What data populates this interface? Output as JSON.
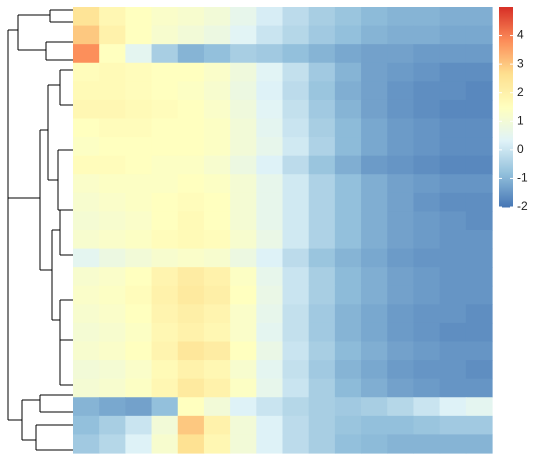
{
  "chart_data": {
    "type": "heatmap",
    "values": [
      [
        2.5,
        1.8,
        1.5,
        1.3,
        1.2,
        1.0,
        0.6,
        0.2,
        -0.2,
        -0.5,
        -0.7,
        -0.9,
        -1.0,
        -1.0,
        -1.1,
        -1.1
      ],
      [
        3.0,
        2.0,
        1.5,
        1.2,
        1.0,
        0.8,
        0.4,
        0.0,
        -0.3,
        -0.6,
        -0.8,
        -1.0,
        -1.1,
        -1.1,
        -1.2,
        -1.2
      ],
      [
        3.8,
        1.5,
        0.5,
        -0.5,
        -1.0,
        -0.8,
        -0.5,
        -0.6,
        -0.8,
        -1.0,
        -1.2,
        -1.3,
        -1.3,
        -1.4,
        -1.4,
        -1.4
      ],
      [
        1.6,
        1.7,
        1.6,
        1.5,
        1.5,
        1.3,
        0.9,
        0.4,
        -0.1,
        -0.6,
        -1.0,
        -1.3,
        -1.4,
        -1.5,
        -1.6,
        -1.6
      ],
      [
        1.7,
        1.7,
        1.6,
        1.5,
        1.4,
        1.2,
        0.8,
        0.3,
        -0.2,
        -0.7,
        -1.1,
        -1.3,
        -1.5,
        -1.6,
        -1.6,
        -1.7
      ],
      [
        1.8,
        1.8,
        1.7,
        1.6,
        1.5,
        1.3,
        0.9,
        0.4,
        -0.1,
        -0.6,
        -1.0,
        -1.3,
        -1.5,
        -1.6,
        -1.7,
        -1.7
      ],
      [
        1.5,
        1.6,
        1.6,
        1.5,
        1.5,
        1.4,
        1.0,
        0.5,
        0.0,
        -0.5,
        -0.9,
        -1.2,
        -1.4,
        -1.5,
        -1.6,
        -1.6
      ],
      [
        1.4,
        1.5,
        1.5,
        1.5,
        1.5,
        1.4,
        1.0,
        0.6,
        0.1,
        -0.4,
        -0.9,
        -1.2,
        -1.4,
        -1.5,
        -1.6,
        -1.6
      ],
      [
        1.6,
        1.6,
        1.5,
        1.4,
        1.4,
        1.2,
        0.8,
        0.3,
        -0.2,
        -0.7,
        -1.1,
        -1.4,
        -1.5,
        -1.6,
        -1.7,
        -1.7
      ],
      [
        1.3,
        1.4,
        1.4,
        1.4,
        1.5,
        1.4,
        1.1,
        0.6,
        0.1,
        -0.4,
        -0.8,
        -1.1,
        -1.3,
        -1.4,
        -1.5,
        -1.5
      ],
      [
        1.2,
        1.3,
        1.4,
        1.5,
        1.6,
        1.5,
        1.1,
        0.6,
        0.1,
        -0.4,
        -0.8,
        -1.1,
        -1.3,
        -1.5,
        -1.6,
        -1.6
      ],
      [
        1.1,
        1.2,
        1.3,
        1.5,
        1.7,
        1.5,
        1.1,
        0.6,
        0.1,
        -0.4,
        -0.8,
        -1.1,
        -1.3,
        -1.4,
        -1.5,
        -1.6
      ],
      [
        1.2,
        1.3,
        1.4,
        1.6,
        1.7,
        1.6,
        1.2,
        0.7,
        0.1,
        -0.4,
        -0.8,
        -1.1,
        -1.3,
        -1.4,
        -1.5,
        -1.5
      ],
      [
        0.5,
        0.8,
        1.0,
        1.2,
        1.3,
        1.2,
        0.8,
        0.3,
        -0.2,
        -0.7,
        -1.0,
        -1.2,
        -1.4,
        -1.5,
        -1.5,
        -1.5
      ],
      [
        1.2,
        1.3,
        1.5,
        1.9,
        2.2,
        2.0,
        1.4,
        0.6,
        0.0,
        -0.5,
        -0.9,
        -1.1,
        -1.3,
        -1.4,
        -1.5,
        -1.5
      ],
      [
        1.3,
        1.4,
        1.6,
        2.0,
        2.3,
        2.1,
        1.5,
        0.7,
        0.0,
        -0.5,
        -0.9,
        -1.1,
        -1.3,
        -1.4,
        -1.5,
        -1.5
      ],
      [
        1.2,
        1.3,
        1.5,
        1.9,
        2.1,
        1.9,
        1.3,
        0.6,
        -0.1,
        -0.6,
        -1.0,
        -1.2,
        -1.4,
        -1.5,
        -1.5,
        -1.6
      ],
      [
        1.1,
        1.2,
        1.4,
        1.8,
        2.0,
        1.8,
        1.3,
        0.5,
        -0.1,
        -0.6,
        -1.0,
        -1.2,
        -1.4,
        -1.5,
        -1.6,
        -1.6
      ],
      [
        1.2,
        1.3,
        1.5,
        1.9,
        2.4,
        2.2,
        1.5,
        0.7,
        0.0,
        -0.5,
        -0.9,
        -1.1,
        -1.3,
        -1.4,
        -1.5,
        -1.5
      ],
      [
        1.0,
        1.1,
        1.3,
        1.7,
        2.0,
        1.8,
        1.2,
        0.5,
        -0.1,
        -0.6,
        -1.0,
        -1.2,
        -1.4,
        -1.5,
        -1.5,
        -1.6
      ],
      [
        1.1,
        1.2,
        1.4,
        1.8,
        2.3,
        2.0,
        1.4,
        0.6,
        0.0,
        -0.5,
        -0.9,
        -1.1,
        -1.3,
        -1.4,
        -1.5,
        -1.5
      ],
      [
        -1.0,
        -1.2,
        -1.3,
        -0.8,
        1.5,
        1.0,
        0.3,
        0.0,
        -0.3,
        -0.5,
        -0.6,
        -0.5,
        -0.3,
        0.0,
        0.3,
        0.5
      ],
      [
        -0.8,
        -0.5,
        0.0,
        1.0,
        3.0,
        2.0,
        1.0,
        0.3,
        -0.2,
        -0.5,
        -0.7,
        -0.8,
        -0.8,
        -0.7,
        -0.6,
        -0.6
      ],
      [
        -0.6,
        -0.3,
        0.3,
        1.2,
        2.6,
        1.8,
        1.0,
        0.3,
        -0.2,
        -0.5,
        -0.8,
        -0.9,
        -1.0,
        -1.0,
        -1.0,
        -1.0
      ]
    ],
    "zlim": [
      -2,
      5
    ],
    "zticks": [
      -2,
      -1,
      0,
      1,
      2,
      3,
      4
    ],
    "colors": [
      "#4575b4",
      "#91bfdb",
      "#e0f3f8",
      "#ffffbf",
      "#fee090",
      "#fc8d59",
      "#d73027"
    ]
  }
}
